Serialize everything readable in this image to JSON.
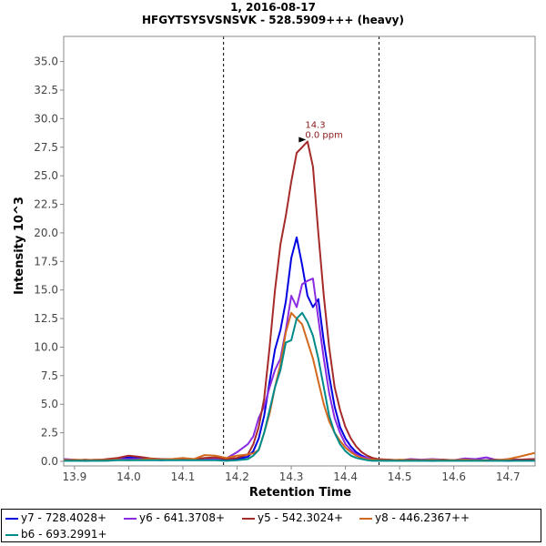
{
  "chart_data": {
    "type": "line",
    "title": "1, 2016-08-17",
    "subtitle": "HFGYTSYSVSNSVK - 528.5909+++ (heavy)",
    "xlabel": "Retention Time",
    "ylabel": "Intensity 10^3",
    "xlim": [
      13.88,
      14.75
    ],
    "ylim": [
      -0.4,
      37.2
    ],
    "x_ticks": [
      13.9,
      14.0,
      14.1,
      14.2,
      14.3,
      14.4,
      14.5,
      14.6,
      14.7
    ],
    "x_tick_labels": [
      "13.9",
      "14.0",
      "14.1",
      "14.2",
      "14.3",
      "14.4",
      "14.5",
      "14.6",
      "14.7"
    ],
    "y_ticks": [
      0,
      2.5,
      5,
      7.5,
      10,
      12.5,
      15,
      17.5,
      20,
      22.5,
      25,
      27.5,
      30,
      32.5,
      35
    ],
    "y_tick_labels": [
      "0.0",
      "2.5",
      "5.0",
      "7.5",
      "10.0",
      "12.5",
      "15.0",
      "17.5",
      "20.0",
      "22.5",
      "25.0",
      "27.5",
      "30.0",
      "32.5",
      "35.0"
    ],
    "boundary_lines": [
      14.175,
      14.462
    ],
    "peak_annotation": {
      "x": 14.329,
      "y": 28.0,
      "rt_label": "14.3",
      "ppm_label": "0.0 ppm"
    },
    "series": [
      {
        "name": "y7 - 728.4028+",
        "color": "#0000e0",
        "x": [
          13.88,
          13.9,
          13.92,
          13.94,
          13.96,
          13.98,
          14.0,
          14.02,
          14.04,
          14.06,
          14.08,
          14.1,
          14.12,
          14.14,
          14.16,
          14.18,
          14.2,
          14.22,
          14.23,
          14.24,
          14.25,
          14.26,
          14.27,
          14.28,
          14.29,
          14.3,
          14.31,
          14.32,
          14.33,
          14.34,
          14.35,
          14.36,
          14.37,
          14.38,
          14.39,
          14.4,
          14.41,
          14.42,
          14.43,
          14.44,
          14.45,
          14.46,
          14.48,
          14.5,
          14.52,
          14.54,
          14.56,
          14.58,
          14.6,
          14.62,
          14.64,
          14.66,
          14.68,
          14.7,
          14.72,
          14.75
        ],
        "y": [
          0.1,
          0.1,
          0.05,
          0.1,
          0.1,
          0.2,
          0.35,
          0.25,
          0.15,
          0.1,
          0.15,
          0.2,
          0.15,
          0.2,
          0.2,
          0.1,
          0.2,
          0.4,
          0.9,
          2.0,
          4.0,
          7.0,
          9.8,
          11.5,
          14.0,
          17.8,
          19.6,
          17.2,
          14.5,
          13.5,
          14.2,
          10.5,
          7.5,
          4.8,
          3.0,
          2.0,
          1.3,
          0.8,
          0.5,
          0.3,
          0.2,
          0.15,
          0.1,
          0.1,
          0.1,
          0.1,
          0.05,
          0.1,
          0.1,
          0.1,
          0.1,
          0.1,
          0.1,
          0.05,
          0.1,
          0.1
        ]
      },
      {
        "name": "y6 - 641.3708+",
        "color": "#8a2be2",
        "x": [
          13.88,
          13.9,
          13.92,
          13.94,
          13.96,
          13.98,
          14.0,
          14.02,
          14.04,
          14.06,
          14.08,
          14.1,
          14.12,
          14.14,
          14.16,
          14.18,
          14.2,
          14.22,
          14.23,
          14.24,
          14.25,
          14.26,
          14.27,
          14.28,
          14.29,
          14.3,
          14.31,
          14.32,
          14.33,
          14.34,
          14.35,
          14.36,
          14.37,
          14.38,
          14.39,
          14.4,
          14.41,
          14.42,
          14.43,
          14.44,
          14.45,
          14.46,
          14.48,
          14.5,
          14.52,
          14.54,
          14.56,
          14.58,
          14.6,
          14.62,
          14.64,
          14.66,
          14.68,
          14.7,
          14.72,
          14.75
        ],
        "y": [
          0.2,
          0.15,
          0.1,
          0.15,
          0.15,
          0.2,
          0.2,
          0.2,
          0.15,
          0.2,
          0.2,
          0.2,
          0.2,
          0.2,
          0.2,
          0.25,
          0.8,
          1.5,
          2.2,
          3.8,
          4.8,
          6.5,
          8.0,
          9.0,
          11.5,
          14.5,
          13.5,
          15.5,
          15.8,
          16.0,
          12.5,
          9.0,
          6.0,
          3.8,
          2.5,
          1.5,
          1.0,
          0.6,
          0.4,
          0.3,
          0.2,
          0.15,
          0.15,
          0.1,
          0.2,
          0.15,
          0.2,
          0.15,
          0.1,
          0.25,
          0.2,
          0.35,
          0.1,
          0.2,
          0.15,
          0.2
        ]
      },
      {
        "name": "y5 - 542.3024+",
        "color": "#a52a2a",
        "x": [
          13.88,
          13.9,
          13.92,
          13.94,
          13.96,
          13.98,
          14.0,
          14.02,
          14.04,
          14.06,
          14.08,
          14.1,
          14.12,
          14.14,
          14.16,
          14.18,
          14.2,
          14.22,
          14.23,
          14.24,
          14.25,
          14.26,
          14.27,
          14.28,
          14.29,
          14.3,
          14.31,
          14.32,
          14.33,
          14.34,
          14.35,
          14.36,
          14.37,
          14.38,
          14.39,
          14.4,
          14.41,
          14.42,
          14.43,
          14.44,
          14.45,
          14.46,
          14.48,
          14.5,
          14.52,
          14.54,
          14.56,
          14.58,
          14.6,
          14.62,
          14.64,
          14.66,
          14.68,
          14.7,
          14.72,
          14.75
        ],
        "y": [
          0.15,
          0.1,
          0.15,
          0.1,
          0.2,
          0.3,
          0.5,
          0.4,
          0.25,
          0.2,
          0.2,
          0.25,
          0.2,
          0.3,
          0.35,
          0.2,
          0.3,
          0.6,
          1.5,
          3.0,
          5.5,
          10.0,
          15.0,
          19.0,
          21.5,
          24.5,
          27.0,
          27.5,
          28.0,
          25.8,
          20.0,
          14.5,
          10.0,
          6.5,
          4.5,
          3.0,
          2.0,
          1.3,
          0.8,
          0.5,
          0.3,
          0.2,
          0.15,
          0.1,
          0.15,
          0.1,
          0.1,
          0.15,
          0.1,
          0.15,
          0.1,
          0.1,
          0.15,
          0.1,
          0.15,
          0.2
        ]
      },
      {
        "name": "y8 - 446.2367++",
        "color": "#d2691e",
        "x": [
          13.88,
          13.9,
          13.92,
          13.94,
          13.96,
          13.98,
          14.0,
          14.02,
          14.04,
          14.06,
          14.08,
          14.1,
          14.12,
          14.14,
          14.16,
          14.18,
          14.2,
          14.22,
          14.23,
          14.24,
          14.25,
          14.26,
          14.27,
          14.28,
          14.29,
          14.3,
          14.31,
          14.32,
          14.33,
          14.34,
          14.35,
          14.36,
          14.37,
          14.38,
          14.39,
          14.4,
          14.41,
          14.42,
          14.43,
          14.44,
          14.45,
          14.46,
          14.48,
          14.5,
          14.52,
          14.54,
          14.56,
          14.58,
          14.6,
          14.62,
          14.64,
          14.66,
          14.68,
          14.7,
          14.72,
          14.75
        ],
        "y": [
          0.1,
          0.15,
          0.1,
          0.15,
          0.1,
          0.15,
          0.1,
          0.15,
          0.2,
          0.15,
          0.2,
          0.3,
          0.2,
          0.55,
          0.5,
          0.3,
          0.5,
          0.6,
          0.7,
          1.0,
          2.5,
          4.2,
          6.5,
          8.5,
          11.3,
          13.0,
          12.5,
          12.0,
          10.5,
          9.0,
          7.0,
          5.0,
          3.5,
          2.5,
          1.8,
          1.2,
          0.8,
          0.5,
          0.3,
          0.2,
          0.15,
          0.1,
          0.1,
          0.15,
          0.1,
          0.1,
          0.15,
          0.1,
          0.1,
          0.15,
          0.1,
          0.05,
          0.1,
          0.2,
          0.4,
          0.75
        ]
      },
      {
        "name": "b6 - 693.2991+",
        "color": "#008b8b",
        "x": [
          13.88,
          13.9,
          13.92,
          13.94,
          13.96,
          13.98,
          14.0,
          14.02,
          14.04,
          14.06,
          14.08,
          14.1,
          14.12,
          14.14,
          14.16,
          14.18,
          14.2,
          14.22,
          14.23,
          14.24,
          14.25,
          14.26,
          14.27,
          14.28,
          14.29,
          14.3,
          14.31,
          14.32,
          14.33,
          14.34,
          14.35,
          14.36,
          14.37,
          14.38,
          14.39,
          14.4,
          14.41,
          14.42,
          14.43,
          14.44,
          14.45,
          14.46,
          14.48,
          14.5,
          14.52,
          14.54,
          14.56,
          14.58,
          14.6,
          14.62,
          14.64,
          14.66,
          14.68,
          14.7,
          14.72,
          14.75
        ],
        "y": [
          0.05,
          0.05,
          0.05,
          0.05,
          0.05,
          0.1,
          0.1,
          0.1,
          0.1,
          0.1,
          0.1,
          0.1,
          0.1,
          0.1,
          0.1,
          0.05,
          0.1,
          0.2,
          0.5,
          1.0,
          2.5,
          4.5,
          6.5,
          8.0,
          10.4,
          10.6,
          12.5,
          13.0,
          12.2,
          11.0,
          9.0,
          6.5,
          4.0,
          2.5,
          1.5,
          0.9,
          0.5,
          0.3,
          0.2,
          0.1,
          0.05,
          0.05,
          0.05,
          0.05,
          0.05,
          0.05,
          0.05,
          0.05,
          0.05,
          0.05,
          0.05,
          0.05,
          0.05,
          0.05,
          0.05,
          0.05
        ]
      }
    ]
  }
}
